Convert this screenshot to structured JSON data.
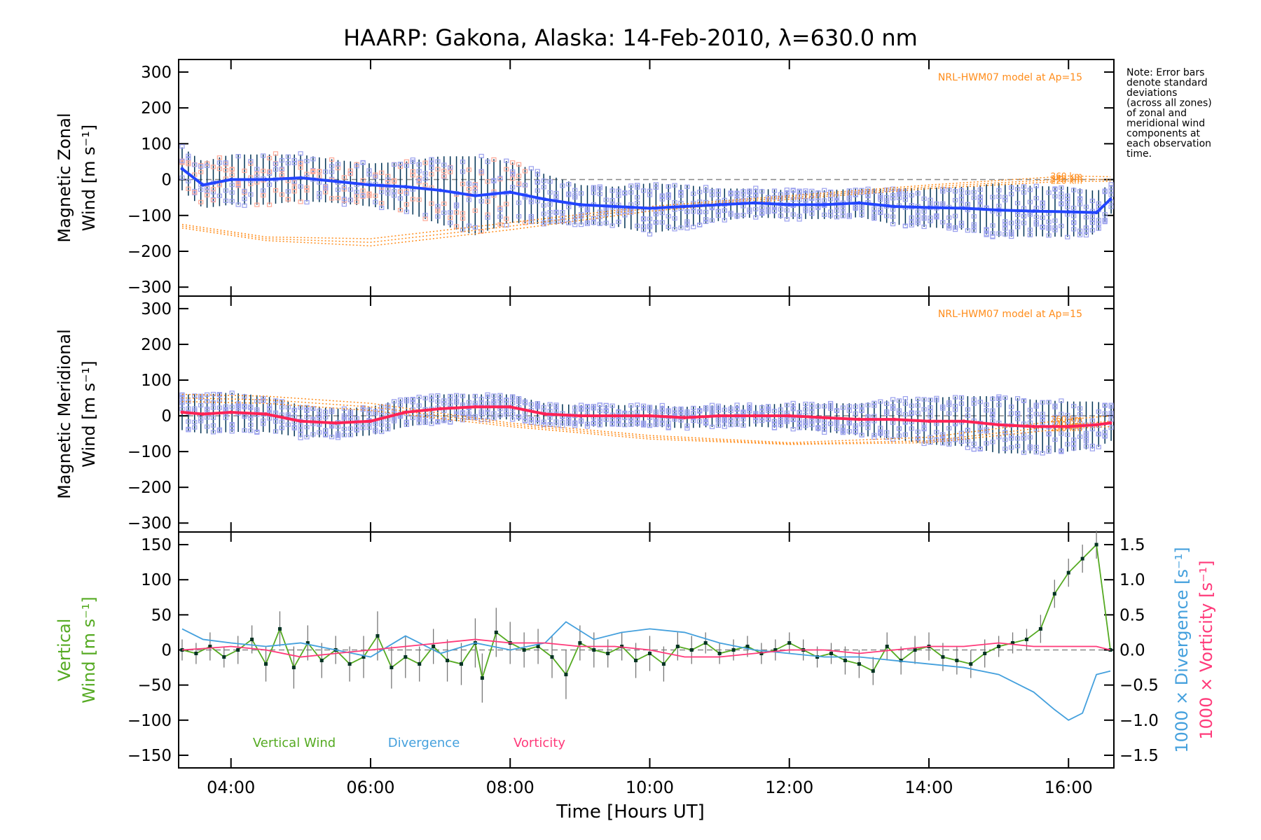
{
  "colors": {
    "zonal_mean": "#2244ff",
    "meridional_mean": "#ff2255",
    "model": "#ff8c1a",
    "samples": "#9aa0ee",
    "samples_alt": "#ffaa99",
    "error_bar": "#003355",
    "vertical": "#55aa22",
    "divergence": "#44a0dd",
    "vorticity": "#ff3a7a",
    "zero_line": "#888888",
    "vertical_point": "#003322"
  },
  "chart_data": {
    "type": "line",
    "title": "HAARP: Gakona,  Alaska: 14-Feb-2010, λ=630.0 nm",
    "note": [
      "Note: Error bars",
      "denote standard",
      "deviations",
      "(across all zones)",
      "of zonal and",
      "meridional wind",
      "components at",
      "each observation",
      "time."
    ],
    "x_axis": {
      "label": "Time [Hours UT]",
      "range": [
        3.25,
        16.65
      ],
      "ticks": [
        4,
        6,
        8,
        10,
        12,
        14,
        16
      ],
      "tick_labels": [
        "04:00",
        "06:00",
        "08:00",
        "10:00",
        "12:00",
        "14:00",
        "16:00"
      ]
    },
    "panels": [
      {
        "id": "zonal",
        "ylabel_line1": "Magnetic Zonal",
        "ylabel_line2": "Wind [m s⁻¹]",
        "ylim": [
          -325,
          335
        ],
        "yticks": [
          300,
          200,
          100,
          0,
          -100,
          -200,
          -300
        ],
        "ytick_labels": [
          "300",
          "200",
          "100",
          "0",
          "−100",
          "−200",
          "−300"
        ],
        "model_label": "NRL-HWM07 model at Ap=15",
        "model_series": [
          {
            "name": "260 km",
            "x": [
              3.3,
              4.5,
              6,
              8,
              10,
              12,
              14,
              16,
              16.6
            ],
            "y": [
              -125,
              -160,
              -165,
              -120,
              -75,
              -45,
              -15,
              10,
              8
            ]
          },
          {
            "name": "240 km",
            "x": [
              3.3,
              4.5,
              6,
              8,
              10,
              12,
              14,
              16,
              16.6
            ],
            "y": [
              -130,
              -165,
              -175,
              -130,
              -80,
              -50,
              -20,
              2,
              0
            ]
          },
          {
            "name": "220 km",
            "x": [
              3.3,
              4.5,
              6,
              8,
              10,
              12,
              14,
              16,
              16.6
            ],
            "y": [
              -135,
              -170,
              -185,
              -140,
              -88,
              -55,
              -25,
              -4,
              -5
            ]
          }
        ],
        "mean_series": {
          "name": "Magnetic Zonal Wind",
          "x": [
            3.3,
            3.6,
            4.0,
            4.5,
            5.0,
            5.5,
            6.0,
            6.5,
            7.0,
            7.5,
            8.0,
            8.5,
            9.0,
            9.5,
            10.0,
            10.5,
            11.0,
            11.5,
            12.0,
            12.5,
            13.0,
            13.5,
            14.0,
            14.5,
            15.0,
            15.5,
            16.0,
            16.4,
            16.6
          ],
          "y": [
            30,
            -15,
            0,
            0,
            5,
            -5,
            -15,
            -20,
            -30,
            -45,
            -35,
            -55,
            -70,
            -75,
            -80,
            -75,
            -70,
            -65,
            -70,
            -70,
            -65,
            -75,
            -78,
            -80,
            -85,
            -88,
            -90,
            -92,
            -55
          ],
          "error": [
            60,
            65,
            70,
            70,
            65,
            60,
            60,
            70,
            95,
            110,
            85,
            70,
            55,
            55,
            70,
            60,
            45,
            40,
            40,
            40,
            40,
            50,
            55,
            60,
            75,
            70,
            70,
            60,
            40
          ]
        }
      },
      {
        "id": "meridional",
        "ylabel_line1": "Magnetic Meridional",
        "ylabel_line2": "Wind [m s⁻¹]",
        "ylim": [
          -325,
          335
        ],
        "yticks": [
          300,
          200,
          100,
          0,
          -100,
          -200,
          -300
        ],
        "ytick_labels": [
          "300",
          "200",
          "100",
          "0",
          "−100",
          "−200",
          "−300"
        ],
        "model_label": "NRL-HWM07 model at Ap=15",
        "model_series": [
          {
            "name": "260 km",
            "x": [
              3.3,
              4.5,
              6,
              8,
              10,
              12,
              14,
              16,
              16.6
            ],
            "y": [
              60,
              55,
              35,
              -20,
              -55,
              -75,
              -60,
              -10,
              0
            ]
          },
          {
            "name": "240 km",
            "x": [
              3.3,
              4.5,
              6,
              8,
              10,
              12,
              14,
              16,
              16.6
            ],
            "y": [
              50,
              45,
              25,
              -25,
              -60,
              -78,
              -70,
              -25,
              -15
            ]
          },
          {
            "name": "220 km",
            "x": [
              3.3,
              4.5,
              6,
              8,
              10,
              12,
              14,
              16,
              16.6
            ],
            "y": [
              40,
              35,
              15,
              -30,
              -65,
              -80,
              -75,
              -35,
              -30
            ]
          }
        ],
        "mean_series": {
          "name": "Magnetic Meridional Wind",
          "x": [
            3.3,
            3.6,
            4.0,
            4.5,
            5.0,
            5.5,
            6.0,
            6.5,
            7.0,
            7.5,
            8.0,
            8.5,
            9.0,
            9.5,
            10.0,
            10.5,
            11.0,
            11.5,
            12.0,
            12.5,
            13.0,
            13.5,
            14.0,
            14.5,
            15.0,
            15.5,
            16.0,
            16.4,
            16.6
          ],
          "y": [
            10,
            5,
            10,
            5,
            -15,
            -20,
            -15,
            10,
            20,
            25,
            25,
            5,
            0,
            0,
            0,
            -5,
            0,
            0,
            0,
            -5,
            -10,
            -10,
            -15,
            -15,
            -25,
            -30,
            -30,
            -25,
            -20
          ],
          "error": [
            50,
            55,
            55,
            50,
            45,
            40,
            40,
            40,
            40,
            35,
            35,
            30,
            30,
            30,
            30,
            30,
            30,
            30,
            35,
            40,
            45,
            55,
            65,
            70,
            80,
            75,
            70,
            65,
            50
          ]
        }
      },
      {
        "id": "vertical",
        "ylabel_line1": "Vertical",
        "ylabel_line2": "Wind [m s⁻¹]",
        "ylim": [
          -168,
          168
        ],
        "yticks": [
          150,
          100,
          50,
          0,
          -50,
          -100,
          -150
        ],
        "ytick_labels": [
          "150",
          "100",
          "50",
          "0",
          "−50",
          "−100",
          "−150"
        ],
        "right_axis": {
          "label_divergence": "1000 × Divergence [s⁻¹]",
          "label_vorticity": "1000 × Vorticity [s⁻¹]",
          "ylim": [
            -1.68,
            1.68
          ],
          "yticks": [
            1.5,
            1.0,
            0.5,
            0.0,
            -0.5,
            -1.0,
            -1.5
          ],
          "ytick_labels": [
            "1.5",
            "1.0",
            "0.5",
            "0.0",
            "−0.5",
            "−1.0",
            "−1.5"
          ]
        },
        "legend": [
          "Vertical Wind",
          "Divergence",
          "Vorticity"
        ],
        "vertical_wind": {
          "name": "Vertical Wind",
          "x": [
            3.3,
            3.5,
            3.7,
            3.9,
            4.1,
            4.3,
            4.5,
            4.7,
            4.9,
            5.1,
            5.3,
            5.5,
            5.7,
            5.9,
            6.1,
            6.3,
            6.5,
            6.7,
            6.9,
            7.1,
            7.3,
            7.5,
            7.6,
            7.8,
            8.0,
            8.2,
            8.4,
            8.6,
            8.8,
            9.0,
            9.2,
            9.4,
            9.6,
            9.8,
            10.0,
            10.2,
            10.4,
            10.6,
            10.8,
            11.0,
            11.2,
            11.4,
            11.6,
            11.8,
            12.0,
            12.2,
            12.4,
            12.6,
            12.8,
            13.0,
            13.2,
            13.4,
            13.6,
            13.8,
            14.0,
            14.2,
            14.4,
            14.6,
            14.8,
            15.0,
            15.2,
            15.4,
            15.6,
            15.8,
            16.0,
            16.2,
            16.4,
            16.6
          ],
          "y": [
            0,
            -5,
            5,
            -10,
            0,
            15,
            -20,
            30,
            -25,
            10,
            -15,
            0,
            -20,
            -10,
            20,
            -25,
            -10,
            -20,
            5,
            -15,
            -20,
            10,
            -40,
            25,
            10,
            0,
            5,
            -10,
            -35,
            10,
            0,
            -5,
            5,
            -15,
            -5,
            -20,
            5,
            0,
            10,
            -5,
            0,
            5,
            -5,
            0,
            10,
            0,
            -10,
            -5,
            -15,
            -20,
            -30,
            5,
            -15,
            0,
            5,
            -10,
            -15,
            -20,
            -5,
            5,
            10,
            15,
            30,
            80,
            110,
            130,
            150,
            0
          ],
          "error": [
            15,
            15,
            20,
            15,
            20,
            20,
            25,
            25,
            30,
            25,
            25,
            20,
            25,
            30,
            35,
            30,
            30,
            25,
            25,
            30,
            30,
            35,
            35,
            35,
            30,
            25,
            25,
            30,
            35,
            25,
            25,
            20,
            20,
            25,
            25,
            25,
            20,
            20,
            15,
            15,
            15,
            15,
            15,
            15,
            15,
            15,
            15,
            15,
            20,
            20,
            20,
            20,
            20,
            20,
            20,
            20,
            20,
            20,
            20,
            15,
            15,
            15,
            20,
            20,
            20,
            20,
            20,
            0
          ]
        },
        "divergence": {
          "name": "Divergence",
          "x": [
            3.3,
            3.6,
            4.0,
            4.5,
            5.0,
            5.5,
            6.0,
            6.5,
            7.0,
            7.5,
            8.0,
            8.5,
            8.8,
            9.2,
            9.6,
            10.0,
            10.5,
            11.0,
            11.5,
            12.0,
            12.5,
            13.0,
            13.5,
            14.0,
            14.5,
            15.0,
            15.5,
            15.8,
            16.0,
            16.2,
            16.4,
            16.6
          ],
          "y": [
            0.3,
            0.15,
            0.1,
            0.05,
            0.1,
            0.0,
            -0.1,
            0.2,
            -0.05,
            0.1,
            0.0,
            0.1,
            0.4,
            0.15,
            0.25,
            0.3,
            0.25,
            0.1,
            0.0,
            -0.05,
            -0.1,
            -0.1,
            -0.15,
            -0.2,
            -0.25,
            -0.35,
            -0.6,
            -0.85,
            -1.0,
            -0.9,
            -0.35,
            -0.3
          ]
        },
        "vorticity": {
          "name": "Vorticity",
          "x": [
            3.3,
            3.6,
            4.0,
            4.5,
            5.0,
            5.5,
            6.0,
            6.5,
            7.0,
            7.5,
            8.0,
            8.5,
            9.0,
            9.5,
            10.0,
            10.5,
            11.0,
            11.5,
            12.0,
            12.5,
            13.0,
            13.5,
            14.0,
            14.5,
            15.0,
            15.5,
            16.0,
            16.4,
            16.6
          ],
          "y": [
            0.0,
            0.02,
            0.05,
            0.0,
            -0.1,
            -0.05,
            0.0,
            0.05,
            0.1,
            0.15,
            0.1,
            0.1,
            0.05,
            0.05,
            0.0,
            -0.1,
            -0.1,
            -0.05,
            0.0,
            0.0,
            -0.05,
            0.0,
            0.05,
            0.05,
            0.1,
            0.05,
            0.05,
            0.05,
            0.0
          ]
        }
      }
    ]
  }
}
